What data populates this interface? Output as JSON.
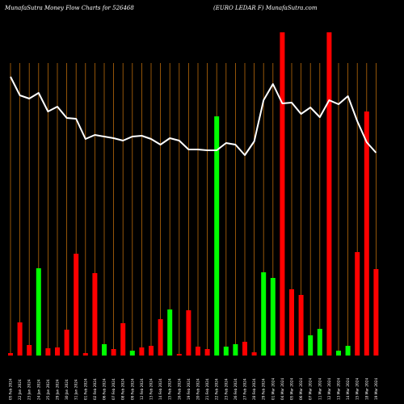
{
  "header": {
    "left": "MunafaSutra  Money Flow  Charts for 526468",
    "right": "(EURO LEDAR F) MunafaSutra.com"
  },
  "colors": {
    "background": "#000000",
    "grid": "#b8690a",
    "up": "#00ff00",
    "down": "#ff0000",
    "line": "#ffffff"
  },
  "chart_data": {
    "type": "bar",
    "title": "",
    "xlabel": "",
    "ylabel": "",
    "grid": true,
    "categories": [
      "05 Feb 2024",
      "22 Jan 2024",
      "23 Jan 2024",
      "24 Jan 2024",
      "25 Jan 2024",
      "29 Jan 2024",
      "30 Jan 2024",
      "31 Jan 2024",
      "01 Feb 2024",
      "02 Feb 2024",
      "06 Feb 2024",
      "07 Feb 2024",
      "08 Feb 2024",
      "09 Feb 2024",
      "12 Feb 2024",
      "13 Feb 2024",
      "14 Feb 2024",
      "15 Feb 2024",
      "16 Feb 2024",
      "19 Feb 2024",
      "20 Feb 2024",
      "21 Feb 2024",
      "22 Feb 2024",
      "23 Feb 2024",
      "26 Feb 2024",
      "27 Feb 2024",
      "28 Feb 2024",
      "29 Feb 2024",
      "01 Mar 2024",
      "04 Mar 2024",
      "05 Mar 2024",
      "06 Mar 2024",
      "07 Mar 2024",
      "11 Mar 2024",
      "12 Mar 2024",
      "13 Mar 2024",
      "14 Mar 2024",
      "15 Mar 2024",
      "18 Mar 2024",
      "19 Mar 2024"
    ],
    "tick_labels": [
      "05 Feb 2024",
      "22 Jan 2024",
      "23 Jan 2024",
      "24 Jan 2024",
      "25 Jan 2024",
      "29 Jan 2024",
      "30 Jan 2024",
      "31 Jan 2024",
      "01 Feb 2024",
      "02 Feb 2024",
      "06 Feb 2024",
      "07 Feb 2024",
      "08 Feb 2024",
      "09 Feb 2024",
      "12 Feb 2024",
      "13 Feb 2024",
      "14 Feb 2024",
      "15 Feb 2024",
      "16 Feb 2024",
      "19 Feb 2024",
      "20 Feb 2024",
      "21 Feb 2024",
      "22 Feb 2024",
      "23 Feb 2024",
      "26 Feb 2024",
      "27 Feb 2024",
      "28 Feb 2024",
      "29 Feb 2024",
      "01 Mar 2024",
      "04 Mar 2024",
      "05 Mar 2024",
      "06 Mar 2024",
      "07 Mar 2024",
      "11 Mar 2024",
      "12 Mar 2024",
      "13 Mar 2024",
      "14 Mar 2024",
      "15 Mar 2024",
      "18 Mar 2024",
      "19 Mar 2024"
    ],
    "bars": [
      {
        "value": 3,
        "dir": "down"
      },
      {
        "value": 41,
        "dir": "down"
      },
      {
        "value": 13,
        "dir": "down"
      },
      {
        "value": 108,
        "dir": "up"
      },
      {
        "value": 9,
        "dir": "down"
      },
      {
        "value": 10,
        "dir": "down"
      },
      {
        "value": 32,
        "dir": "down"
      },
      {
        "value": 126,
        "dir": "down"
      },
      {
        "value": 3,
        "dir": "down"
      },
      {
        "value": 102,
        "dir": "down"
      },
      {
        "value": 14,
        "dir": "up"
      },
      {
        "value": 8,
        "dir": "down"
      },
      {
        "value": 40,
        "dir": "down"
      },
      {
        "value": 6,
        "dir": "up"
      },
      {
        "value": 10,
        "dir": "down"
      },
      {
        "value": 12,
        "dir": "down"
      },
      {
        "value": 45,
        "dir": "down"
      },
      {
        "value": 57,
        "dir": "up"
      },
      {
        "value": 2,
        "dir": "down"
      },
      {
        "value": 56,
        "dir": "down"
      },
      {
        "value": 11,
        "dir": "down"
      },
      {
        "value": 8,
        "dir": "down"
      },
      {
        "value": 296,
        "dir": "up"
      },
      {
        "value": 11,
        "dir": "up"
      },
      {
        "value": 14,
        "dir": "up"
      },
      {
        "value": 17,
        "dir": "down"
      },
      {
        "value": 4,
        "dir": "down"
      },
      {
        "value": 103,
        "dir": "up"
      },
      {
        "value": 96,
        "dir": "up"
      },
      {
        "value": 400,
        "dir": "down"
      },
      {
        "value": 82,
        "dir": "down"
      },
      {
        "value": 75,
        "dir": "down"
      },
      {
        "value": 25,
        "dir": "up"
      },
      {
        "value": 33,
        "dir": "up"
      },
      {
        "value": 400,
        "dir": "down"
      },
      {
        "value": 6,
        "dir": "up"
      },
      {
        "value": 12,
        "dir": "up"
      },
      {
        "value": 128,
        "dir": "down"
      },
      {
        "value": 302,
        "dir": "down"
      },
      {
        "value": 107,
        "dir": "down"
      }
    ],
    "line": [
      345,
      322,
      318,
      325,
      302,
      308,
      294,
      293,
      268,
      273,
      271,
      269,
      266,
      271,
      272,
      268,
      261,
      269,
      266,
      255,
      255,
      254,
      254,
      263,
      261,
      248,
      265,
      316,
      336,
      312,
      313,
      299,
      307,
      295,
      316,
      311,
      321,
      290,
      264,
      251
    ],
    "ylim": [
      0,
      400
    ]
  }
}
